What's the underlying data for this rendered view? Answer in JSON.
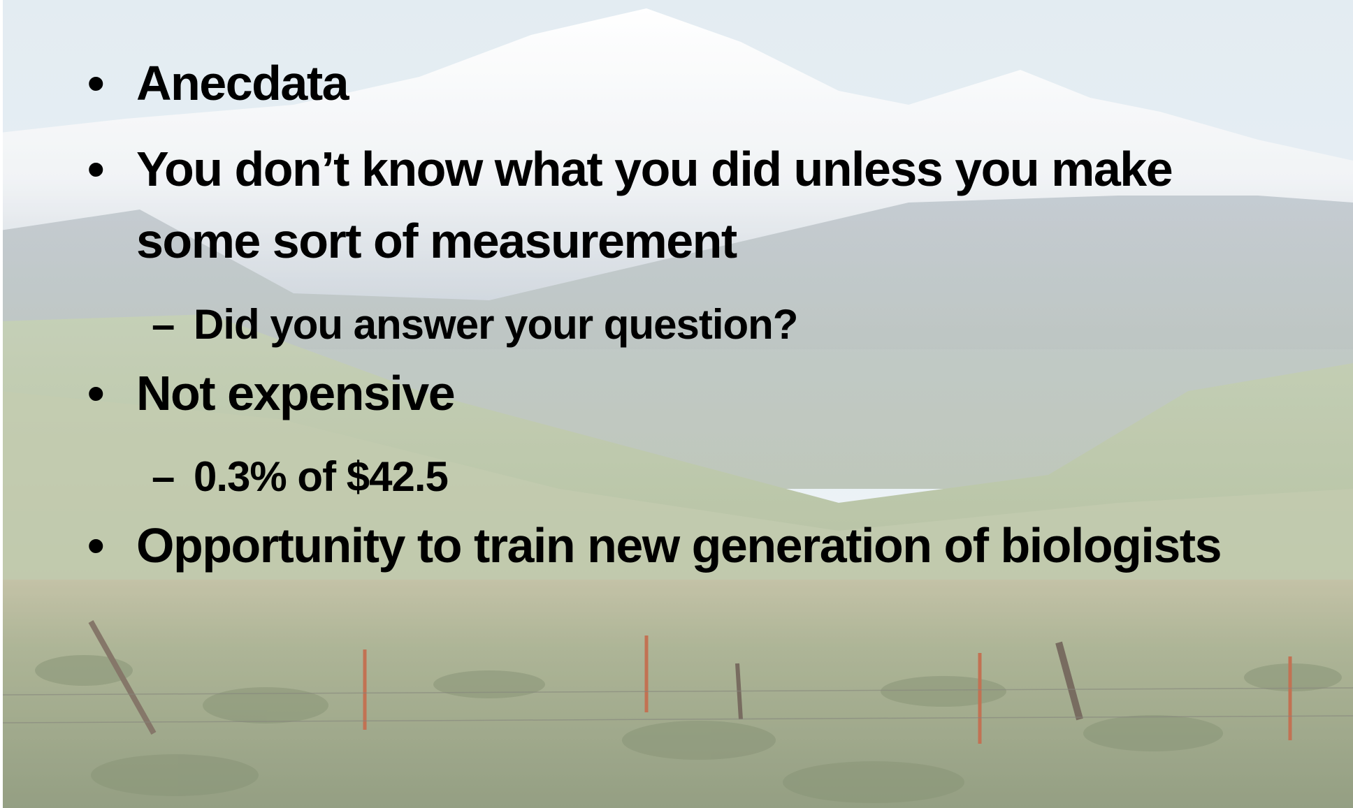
{
  "bullets": [
    {
      "text": "Anecdata"
    },
    {
      "text": "You don’t know what you did unless you make some sort of measurement",
      "sub": [
        "Did you answer your question?"
      ]
    },
    {
      "text": "Not expensive",
      "sub": [
        "0.3% of $42.5"
      ]
    },
    {
      "text": "Opportunity to train new generation of biologists"
    }
  ]
}
